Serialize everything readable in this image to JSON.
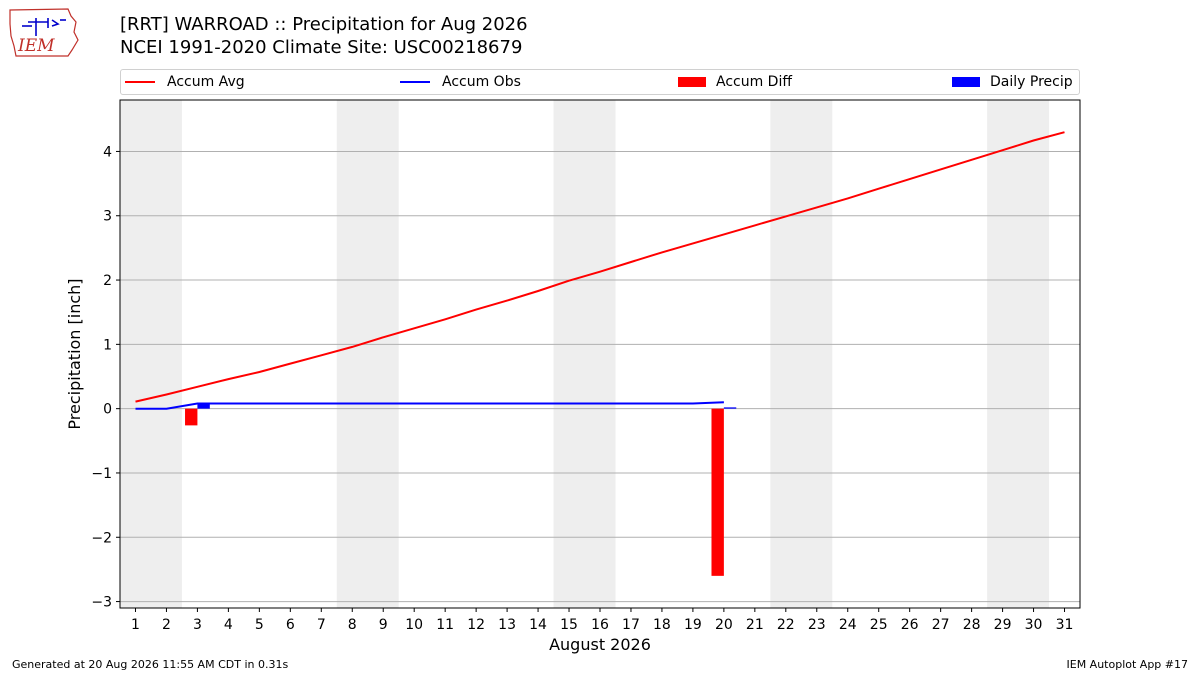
{
  "header": {
    "title_line1": "[RRT] WARROAD :: Precipitation for Aug 2026",
    "title_line2": "NCEI 1991-2020 Climate Site: USC00218679"
  },
  "logo": {
    "text": "IEM"
  },
  "legend": {
    "accum_avg": "Accum Avg",
    "accum_obs": "Accum Obs",
    "accum_diff": "Accum Diff",
    "daily_precip": "Daily Precip"
  },
  "footer": {
    "left": "Generated at 20 Aug 2026 11:55 AM CDT in 0.31s",
    "right": "IEM Autoplot App #17"
  },
  "colors": {
    "accum_avg": "#ff0000",
    "accum_obs": "#0000ff",
    "accum_diff": "#ff0000",
    "daily_precip": "#0000ff",
    "weekend_shade": "#eeeeee",
    "grid": "#b0b0b0"
  },
  "chart_data": {
    "type": "bar",
    "xlabel": "August 2026",
    "ylabel": "Precipitation [inch]",
    "xlim": [
      0.5,
      31.5
    ],
    "ylim": [
      -3.1,
      4.8
    ],
    "yticks": [
      -3,
      -2,
      -1,
      0,
      1,
      2,
      3,
      4
    ],
    "ytick_labels": [
      "−3",
      "−2",
      "−1",
      "0",
      "1",
      "2",
      "3",
      "4"
    ],
    "x_ticks": [
      1,
      2,
      3,
      4,
      5,
      6,
      7,
      8,
      9,
      10,
      11,
      12,
      13,
      14,
      15,
      16,
      17,
      18,
      19,
      20,
      21,
      22,
      23,
      24,
      25,
      26,
      27,
      28,
      29,
      30,
      31
    ],
    "grid": "y",
    "legend_position": "top",
    "weekend_spans": [
      [
        0.5,
        2.5
      ],
      [
        7.5,
        9.5
      ],
      [
        14.5,
        16.5
      ],
      [
        21.5,
        23.5
      ],
      [
        28.5,
        30.5
      ]
    ],
    "accum_avg": {
      "x": [
        1,
        2,
        3,
        4,
        5,
        6,
        7,
        8,
        9,
        10,
        11,
        12,
        13,
        14,
        15,
        16,
        17,
        18,
        19,
        20,
        21,
        22,
        23,
        24,
        25,
        26,
        27,
        28,
        29,
        30,
        31
      ],
      "values": [
        0.11,
        0.22,
        0.34,
        0.46,
        0.57,
        0.7,
        0.83,
        0.96,
        1.11,
        1.25,
        1.39,
        1.54,
        1.68,
        1.83,
        1.99,
        2.13,
        2.28,
        2.43,
        2.57,
        2.71,
        2.85,
        2.99,
        3.13,
        3.27,
        3.42,
        3.57,
        3.72,
        3.87,
        4.02,
        4.17,
        4.3
      ]
    },
    "accum_obs": {
      "x": [
        1,
        2,
        3,
        4,
        5,
        6,
        7,
        8,
        9,
        10,
        11,
        12,
        13,
        14,
        15,
        16,
        17,
        18,
        19,
        20
      ],
      "values": [
        0,
        0,
        0.08,
        0.08,
        0.08,
        0.08,
        0.08,
        0.08,
        0.08,
        0.08,
        0.08,
        0.08,
        0.08,
        0.08,
        0.08,
        0.08,
        0.08,
        0.08,
        0.08,
        0.1
      ]
    },
    "accum_diff": {
      "x": [
        3,
        20
      ],
      "values": [
        -0.26,
        -2.6
      ]
    },
    "daily_precip": {
      "x": [
        3,
        20
      ],
      "values": [
        0.08,
        0.02
      ]
    }
  }
}
